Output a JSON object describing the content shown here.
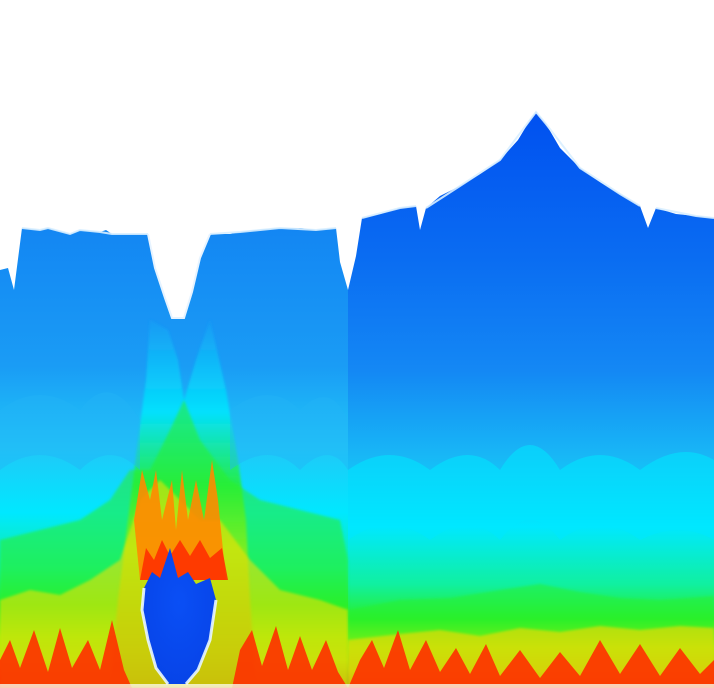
{
  "image": {
    "subject": "fractal render",
    "palette": {
      "background": "#ffffff",
      "deep_blue": "#0050f0",
      "blue": "#0a73f2",
      "light_blue": "#1a9cf5",
      "cyan": "#00e8ff",
      "green": "#2af02a",
      "yellow": "#ffee00",
      "orange": "#ff9a00",
      "red": "#ff2a00",
      "interior": "#0a4ff5"
    }
  }
}
